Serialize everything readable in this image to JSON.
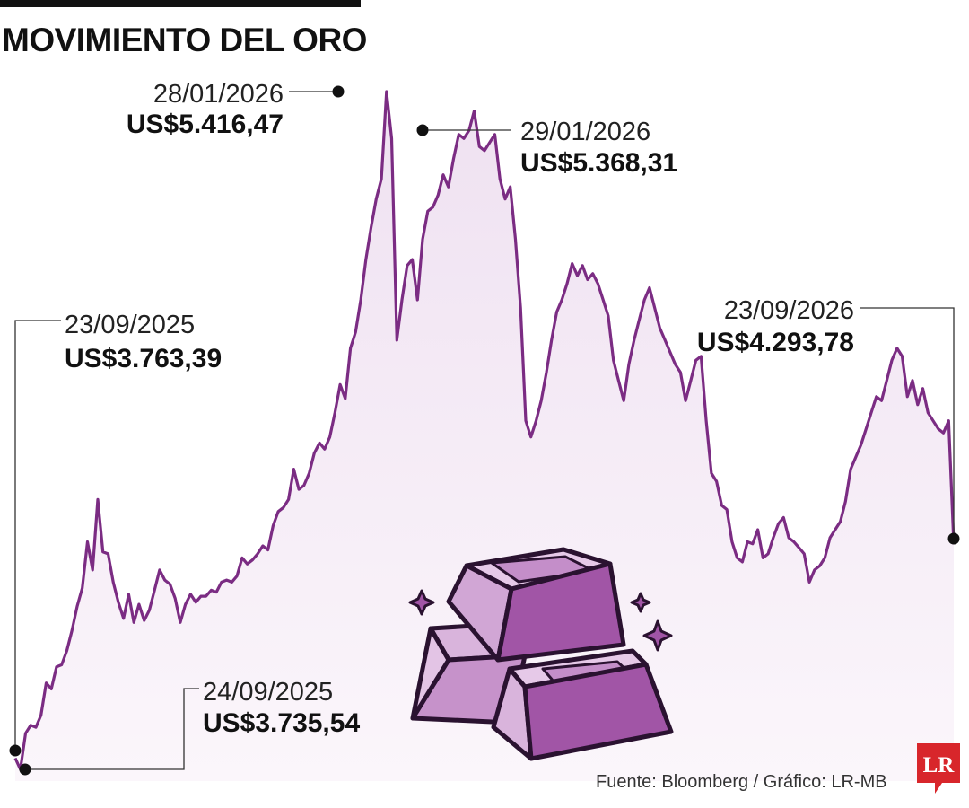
{
  "title": "MOVIMIENTO DEL ORO",
  "source": "Fuente: Bloomberg / Gráfico: LR-MB",
  "logo_text": "LR",
  "colors": {
    "line": "#7b2c83",
    "fill": "#f4e9f5",
    "logo": "#d8262b",
    "gold_bars": "#a155a6"
  },
  "icons": [
    "gold-bars-icon",
    "sparkle-icon",
    "lr-logo-icon"
  ],
  "chart_data": {
    "type": "area",
    "title": "MOVIMIENTO DEL ORO",
    "xlabel": "",
    "ylabel": "",
    "x_range": [
      "23/09/2025",
      "23/09/2026"
    ],
    "ylim": [
      3700,
      5450
    ],
    "grid": false,
    "unit": "US$",
    "values": [
      3763.39,
      3735.54,
      3825,
      3845,
      3840,
      3870,
      3950,
      3935,
      3990,
      3995,
      4030,
      4080,
      4140,
      4185,
      4300,
      4230,
      4405,
      4275,
      4270,
      4200,
      4150,
      4110,
      4170,
      4100,
      4145,
      4105,
      4130,
      4180,
      4230,
      4205,
      4195,
      4160,
      4100,
      4145,
      4170,
      4150,
      4165,
      4165,
      4180,
      4175,
      4200,
      4205,
      4200,
      4215,
      4260,
      4245,
      4255,
      4270,
      4290,
      4280,
      4340,
      4375,
      4385,
      4405,
      4480,
      4430,
      4440,
      4470,
      4520,
      4545,
      4530,
      4560,
      4620,
      4690,
      4655,
      4780,
      4820,
      4900,
      5000,
      5080,
      5150,
      5200,
      5416.47,
      5300,
      4800,
      4900,
      4985,
      5000,
      4900,
      5050,
      5120,
      5130,
      5160,
      5210,
      5180,
      5250,
      5310,
      5300,
      5320,
      5368.31,
      5280,
      5270,
      5290,
      5310,
      5200,
      5150,
      5180,
      5050,
      4880,
      4600,
      4560,
      4600,
      4650,
      4720,
      4800,
      4870,
      4900,
      4940,
      4990,
      4960,
      4985,
      4950,
      4965,
      4940,
      4900,
      4860,
      4750,
      4700,
      4650,
      4740,
      4800,
      4850,
      4900,
      4930,
      4880,
      4830,
      4800,
      4770,
      4740,
      4720,
      4650,
      4700,
      4750,
      4760,
      4600,
      4470,
      4450,
      4390,
      4380,
      4300,
      4260,
      4250,
      4300,
      4295,
      4330,
      4260,
      4270,
      4310,
      4345,
      4360,
      4310,
      4300,
      4285,
      4270,
      4200,
      4230,
      4240,
      4260,
      4310,
      4330,
      4350,
      4400,
      4480,
      4510,
      4540,
      4580,
      4620,
      4660,
      4650,
      4700,
      4750,
      4780,
      4760,
      4660,
      4700,
      4640,
      4680,
      4620,
      4600,
      4580,
      4570,
      4600,
      4293.78
    ],
    "annotations": [
      {
        "date": "23/09/2025",
        "value": "US$3.763,39"
      },
      {
        "date": "24/09/2025",
        "value": "US$3.735,54"
      },
      {
        "date": "28/01/2026",
        "value": "US$5.416,47"
      },
      {
        "date": "29/01/2026",
        "value": "US$5.368,31"
      },
      {
        "date": "23/09/2026",
        "value": "US$4.293,78"
      }
    ]
  }
}
